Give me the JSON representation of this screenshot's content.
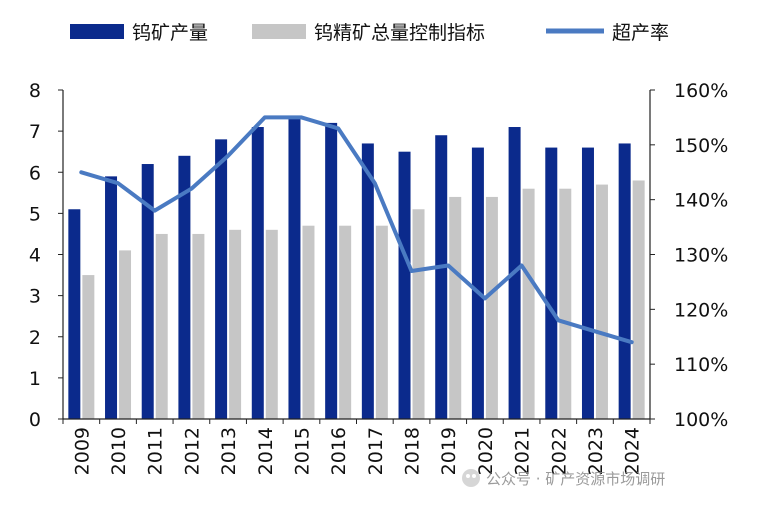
{
  "chart_data": {
    "type": "bar",
    "categories": [
      "2009",
      "2010",
      "2011",
      "2012",
      "2013",
      "2014",
      "2015",
      "2016",
      "2017",
      "2018",
      "2019",
      "2020",
      "2021",
      "2022",
      "2023",
      "2024"
    ],
    "series": [
      {
        "name": "钨矿产量",
        "type": "bar",
        "axis": "left",
        "color": "#0b2a8c",
        "values": [
          5.1,
          5.9,
          6.2,
          6.4,
          6.8,
          7.1,
          7.3,
          7.2,
          6.7,
          6.5,
          6.9,
          6.6,
          7.1,
          6.6,
          6.6,
          6.7
        ]
      },
      {
        "name": "钨精矿总量控制指标",
        "type": "bar",
        "axis": "left",
        "color": "#c6c6c6",
        "values": [
          3.5,
          4.1,
          4.5,
          4.5,
          4.6,
          4.6,
          4.7,
          4.7,
          4.7,
          5.1,
          5.4,
          5.4,
          5.6,
          5.6,
          5.7,
          5.8
        ]
      },
      {
        "name": "超产率",
        "type": "line",
        "axis": "right",
        "color": "#4a7ac2",
        "values": [
          1.45,
          1.43,
          1.38,
          1.42,
          1.48,
          1.55,
          1.55,
          1.53,
          1.43,
          1.27,
          1.28,
          1.22,
          1.28,
          1.18,
          1.16,
          1.14
        ]
      }
    ],
    "ylim_left": [
      0,
      8
    ],
    "yticks_left": [
      "0",
      "1",
      "2",
      "3",
      "4",
      "5",
      "6",
      "7",
      "8"
    ],
    "ylim_right": [
      1.0,
      1.6
    ],
    "yticks_right": [
      "100%",
      "110%",
      "120%",
      "130%",
      "140%",
      "150%",
      "160%"
    ],
    "legend_position": "top",
    "grid": false
  },
  "watermark": {
    "text": "公众号 · 矿产资源市场调研"
  }
}
